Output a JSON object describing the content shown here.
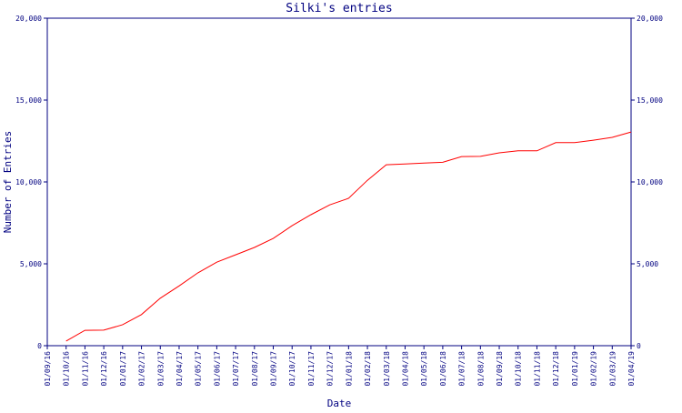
{
  "chart_data": {
    "type": "line",
    "title": "Silki's entries",
    "x_label": "Date",
    "y_label": "Number of Entries",
    "categories": [
      "01/09/16",
      "01/10/16",
      "01/11/16",
      "01/12/16",
      "01/01/17",
      "01/02/17",
      "01/03/17",
      "01/04/17",
      "01/05/17",
      "01/06/17",
      "01/07/17",
      "01/08/17",
      "01/09/17",
      "01/10/17",
      "01/11/17",
      "01/12/17",
      "01/01/18",
      "01/02/18",
      "01/03/18",
      "01/04/18",
      "01/05/18",
      "01/06/18",
      "01/07/18",
      "01/08/18",
      "01/09/18",
      "01/10/18",
      "01/11/18",
      "01/12/18",
      "01/01/19",
      "01/02/19",
      "01/03/19",
      "01/04/19"
    ],
    "series": [
      {
        "name": "Entries",
        "color": "#ff0000",
        "values": [
          null,
          280,
          940,
          950,
          1280,
          1900,
          2900,
          3650,
          4450,
          5100,
          5550,
          6000,
          6550,
          7330,
          8000,
          8600,
          9000,
          10100,
          11050,
          11100,
          11150,
          11200,
          11550,
          11560,
          11780,
          11900,
          11900,
          12400,
          12400,
          12550,
          12720,
          13050
        ]
      }
    ],
    "ylim": [
      0,
      20000
    ],
    "yticks": [
      0,
      {
        "value": 5000,
        "label": "5,000"
      },
      {
        "value": 10000,
        "label": "10,000"
      },
      {
        "value": 15000,
        "label": "15,000"
      },
      {
        "value": 20000,
        "label": "20,000"
      }
    ]
  }
}
